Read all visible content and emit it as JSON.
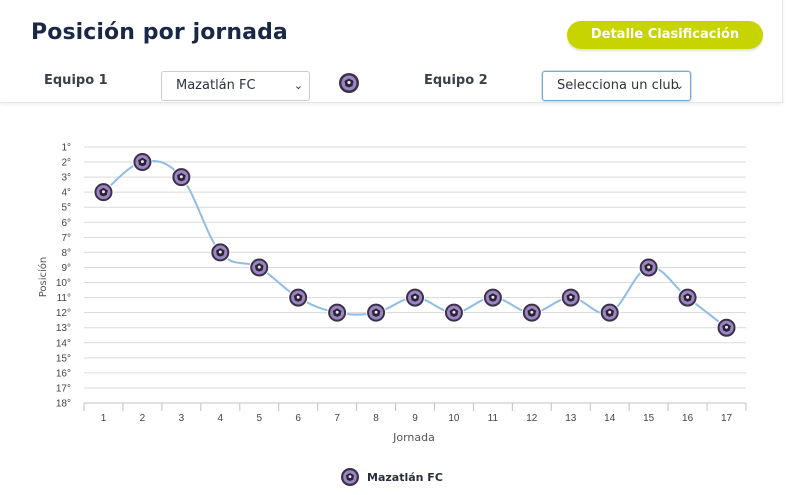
{
  "header": {
    "title": "Posición por jornada",
    "detail_button": "Detalle Clasificación",
    "team1_label": "Equipo 1",
    "team1_value": "Mazatlán FC",
    "team2_label": "Equipo 2",
    "team2_value": "Selecciona un club"
  },
  "colors": {
    "accent": "#c8d400",
    "line": "#8fbde6",
    "badge_outer": "#3c3148",
    "badge_inner": "#9a86c2"
  },
  "chart_data": {
    "type": "line",
    "ylabel": "Posición",
    "xlabel": "Jornada",
    "categories": [
      "1",
      "2",
      "3",
      "4",
      "5",
      "6",
      "7",
      "8",
      "9",
      "10",
      "11",
      "12",
      "13",
      "14",
      "15",
      "16",
      "17"
    ],
    "y_ticks": [
      "1°",
      "2°",
      "3°",
      "4°",
      "5°",
      "6°",
      "7°",
      "8°",
      "9°",
      "10°",
      "11°",
      "12°",
      "13°",
      "14°",
      "15°",
      "16°",
      "17°",
      "18°"
    ],
    "ylim": [
      1,
      18
    ],
    "y_inverted": true,
    "grid": true,
    "legend": "bottom",
    "series": [
      {
        "name": "Mazatlán FC",
        "values": [
          4,
          2,
          3,
          8,
          9,
          11,
          12,
          12,
          11,
          12,
          11,
          12,
          11,
          12,
          9,
          11,
          13
        ]
      }
    ]
  }
}
